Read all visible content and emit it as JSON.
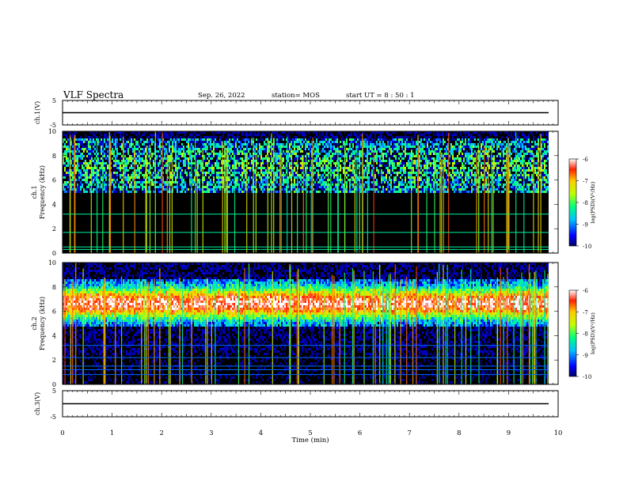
{
  "header": {
    "title": "VLF Spectra",
    "date": "Sep. 26, 2022",
    "station": "station= MOS",
    "start": "start  UT =   8 : 50 : 1"
  },
  "chart_data": [
    {
      "type": "line",
      "panel": "voltage-1",
      "ylabel": "ch.1(V)",
      "yticks": [
        "5",
        "-5"
      ],
      "ylim": [
        -5,
        5
      ],
      "xlim": [
        0,
        10
      ],
      "series": [
        {
          "x": [
            0,
            10
          ],
          "values": [
            0,
            0
          ]
        }
      ]
    },
    {
      "type": "heatmap",
      "panel": "spectrogram-1",
      "ylabel": "ch.1\nFrequency (kHz)",
      "ylabel_line1": "ch.1",
      "ylabel_line2": "Frequency (kHz)",
      "yticks": [
        "0",
        "2",
        "4",
        "6",
        "8",
        "10"
      ],
      "ylim": [
        0,
        10
      ],
      "xlim": [
        0,
        10
      ],
      "colorbar_label": "log(PSD)(V²/Hz)",
      "colorbar_ticks": [
        "-6",
        "-7",
        "-8",
        "-9",
        "-10"
      ],
      "colorbar_range": [
        -10,
        -6
      ],
      "dominant_band_khz": [
        5,
        9.5
      ],
      "band_level": -8.5,
      "background_level": -10,
      "narrowband_lines_khz": [
        0.3,
        0.5,
        1.7,
        3.2
      ]
    },
    {
      "type": "heatmap",
      "panel": "spectrogram-2",
      "ylabel": "ch.2\nFrequency (kHz)",
      "ylabel_line1": "ch.2",
      "ylabel_line2": "Frequency (kHz)",
      "yticks": [
        "0",
        "2",
        "4",
        "6",
        "8",
        "10"
      ],
      "ylim": [
        0,
        10
      ],
      "xlim": [
        0,
        10
      ],
      "colorbar_label": "log(PSD)(V²/Hz)",
      "colorbar_ticks": [
        "-6",
        "-7",
        "-8",
        "-9",
        "-10"
      ],
      "colorbar_range": [
        -10,
        -6
      ],
      "dominant_band_khz": [
        5.5,
        8
      ],
      "band_level": -7,
      "background_level": -10,
      "narrowband_lines_khz": [
        0.8,
        1.2,
        1.5,
        2.2,
        3.2
      ]
    },
    {
      "type": "line",
      "panel": "voltage-3",
      "ylabel": "ch.3(V)",
      "yticks": [
        "5",
        "-5"
      ],
      "ylim": [
        -5,
        5
      ],
      "xlim": [
        0,
        10
      ],
      "xlabel": "Time  (min)",
      "xticks": [
        "0",
        "1",
        "2",
        "3",
        "4",
        "5",
        "6",
        "7",
        "8",
        "9",
        "10"
      ],
      "series": [
        {
          "x": [
            0,
            10
          ],
          "values": [
            0,
            0
          ]
        }
      ]
    }
  ]
}
